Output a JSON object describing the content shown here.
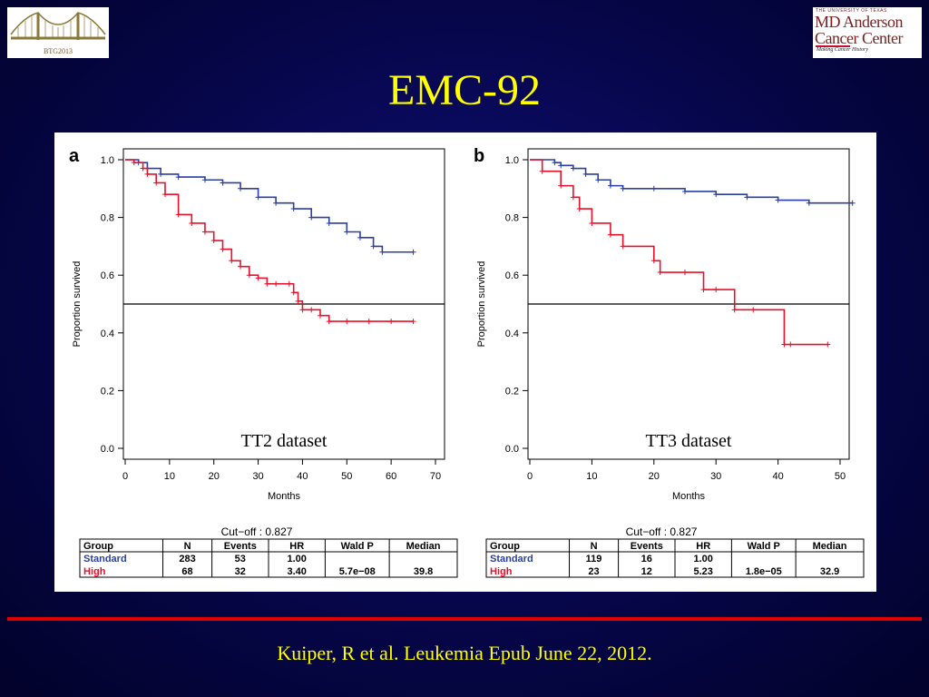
{
  "slide": {
    "title": "EMC-92",
    "citation": "Kuiper, R et al. Leukemia Epub June 22, 2012."
  },
  "logos": {
    "left_caption": "BTG2013",
    "right_line1": "THE UNIVERSITY OF TEXAS",
    "right_line2": "MD Anderson",
    "right_line3": "Cancer Center",
    "right_line4": "Making Cancer History"
  },
  "colors": {
    "standard": "#2a3fa3",
    "high": "#e8102a",
    "title": "#ffff00",
    "rule": "#e00000"
  },
  "chart_data": [
    {
      "type": "line",
      "panel_label": "a",
      "dataset_label": "TT2 dataset",
      "xlabel": "Months",
      "ylabel": "Proportion survived",
      "xlim": [
        0,
        70
      ],
      "ylim": [
        0,
        1
      ],
      "xticks": [
        "0",
        "10",
        "20",
        "30",
        "40",
        "50",
        "60",
        "70"
      ],
      "yticks": [
        "0.0",
        "0.2",
        "0.4",
        "0.6",
        "0.8",
        "1.0"
      ],
      "reference_line": 0.5,
      "series": [
        {
          "name": "Standard",
          "x": [
            0,
            3,
            5,
            8,
            12,
            18,
            22,
            26,
            30,
            34,
            38,
            42,
            46,
            50,
            53,
            56,
            58,
            65
          ],
          "y": [
            1.0,
            0.99,
            0.97,
            0.95,
            0.94,
            0.93,
            0.92,
            0.9,
            0.87,
            0.85,
            0.83,
            0.8,
            0.78,
            0.75,
            0.73,
            0.7,
            0.68,
            0.68
          ]
        },
        {
          "name": "High",
          "x": [
            0,
            2,
            4,
            5,
            7,
            9,
            12,
            15,
            18,
            20,
            22,
            24,
            26,
            28,
            30,
            32,
            34,
            37,
            38,
            39,
            40,
            42,
            44,
            46,
            50,
            55,
            60,
            65
          ],
          "y": [
            1.0,
            0.99,
            0.97,
            0.95,
            0.92,
            0.88,
            0.81,
            0.78,
            0.75,
            0.72,
            0.69,
            0.65,
            0.63,
            0.6,
            0.59,
            0.57,
            0.57,
            0.57,
            0.54,
            0.51,
            0.48,
            0.48,
            0.46,
            0.44,
            0.44,
            0.44,
            0.44,
            0.44
          ]
        }
      ],
      "cutoff": "Cut−off :  0.827",
      "table": {
        "headers": [
          "Group",
          "N",
          "Events",
          "HR",
          "Wald P",
          "Median"
        ],
        "rows": [
          [
            "Standard",
            "283",
            "53",
            "1.00",
            "",
            ""
          ],
          [
            "High",
            "68",
            "32",
            "3.40",
            "5.7e−08",
            "39.8"
          ]
        ]
      }
    },
    {
      "type": "line",
      "panel_label": "b",
      "dataset_label": "TT3 dataset",
      "xlabel": "Months",
      "ylabel": "Proportion survived",
      "xlim": [
        0,
        50
      ],
      "ylim": [
        0,
        1
      ],
      "xticks": [
        "0",
        "10",
        "20",
        "30",
        "40",
        "50"
      ],
      "yticks": [
        "0.0",
        "0.2",
        "0.4",
        "0.6",
        "0.8",
        "1.0"
      ],
      "reference_line": 0.5,
      "series": [
        {
          "name": "Standard",
          "x": [
            0,
            4,
            5,
            7,
            9,
            11,
            13,
            15,
            20,
            25,
            30,
            35,
            40,
            45,
            52
          ],
          "y": [
            1.0,
            0.99,
            0.98,
            0.97,
            0.95,
            0.93,
            0.91,
            0.9,
            0.9,
            0.89,
            0.88,
            0.87,
            0.86,
            0.85,
            0.85
          ]
        },
        {
          "name": "High",
          "x": [
            0,
            2,
            5,
            7,
            8,
            10,
            13,
            15,
            20,
            21,
            25,
            28,
            30,
            33,
            36,
            41,
            42,
            48
          ],
          "y": [
            1.0,
            0.96,
            0.91,
            0.87,
            0.83,
            0.78,
            0.74,
            0.7,
            0.65,
            0.61,
            0.61,
            0.55,
            0.55,
            0.48,
            0.48,
            0.36,
            0.36,
            0.36
          ]
        }
      ],
      "cutoff": "Cut−off :  0.827",
      "table": {
        "headers": [
          "Group",
          "N",
          "Events",
          "HR",
          "Wald P",
          "Median"
        ],
        "rows": [
          [
            "Standard",
            "119",
            "16",
            "1.00",
            "",
            ""
          ],
          [
            "High",
            "23",
            "12",
            "5.23",
            "1.8e−05",
            "32.9"
          ]
        ]
      }
    }
  ]
}
